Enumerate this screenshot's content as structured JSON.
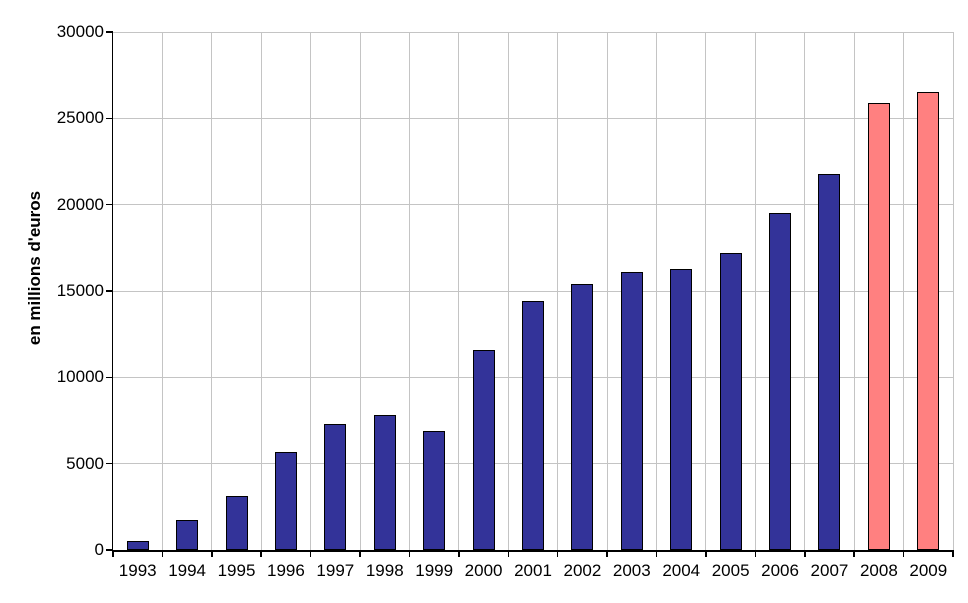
{
  "chart_data": {
    "type": "bar",
    "title": "",
    "xlabel": "",
    "ylabel": "en millions d'euros",
    "categories": [
      "1993",
      "1994",
      "1995",
      "1996",
      "1997",
      "1998",
      "1999",
      "2000",
      "2001",
      "2002",
      "2003",
      "2004",
      "2005",
      "2006",
      "2007",
      "2008",
      "2009"
    ],
    "values": [
      550,
      1750,
      3100,
      5700,
      7300,
      7800,
      6900,
      11600,
      14400,
      15400,
      16100,
      16250,
      17200,
      19500,
      21750,
      25900,
      26500
    ],
    "bar_colors": [
      "#333399",
      "#333399",
      "#333399",
      "#333399",
      "#333399",
      "#333399",
      "#333399",
      "#333399",
      "#333399",
      "#333399",
      "#333399",
      "#333399",
      "#333399",
      "#333399",
      "#333399",
      "#FF8080",
      "#FF8080"
    ],
    "ylim": [
      0,
      30000
    ],
    "yticks": [
      0,
      5000,
      10000,
      15000,
      20000,
      25000,
      30000
    ],
    "ytick_labels": [
      "0",
      "5000",
      "10000",
      "15000",
      "20000",
      "25000",
      "30000"
    ],
    "grid": true,
    "legend": "none",
    "colors": {
      "bar_default": "#333399",
      "bar_highlight": "#FF8080",
      "bar_border": "#000000",
      "gridline": "#C4C4C4",
      "axis": "#000000",
      "background": "#FFFFFF"
    }
  }
}
